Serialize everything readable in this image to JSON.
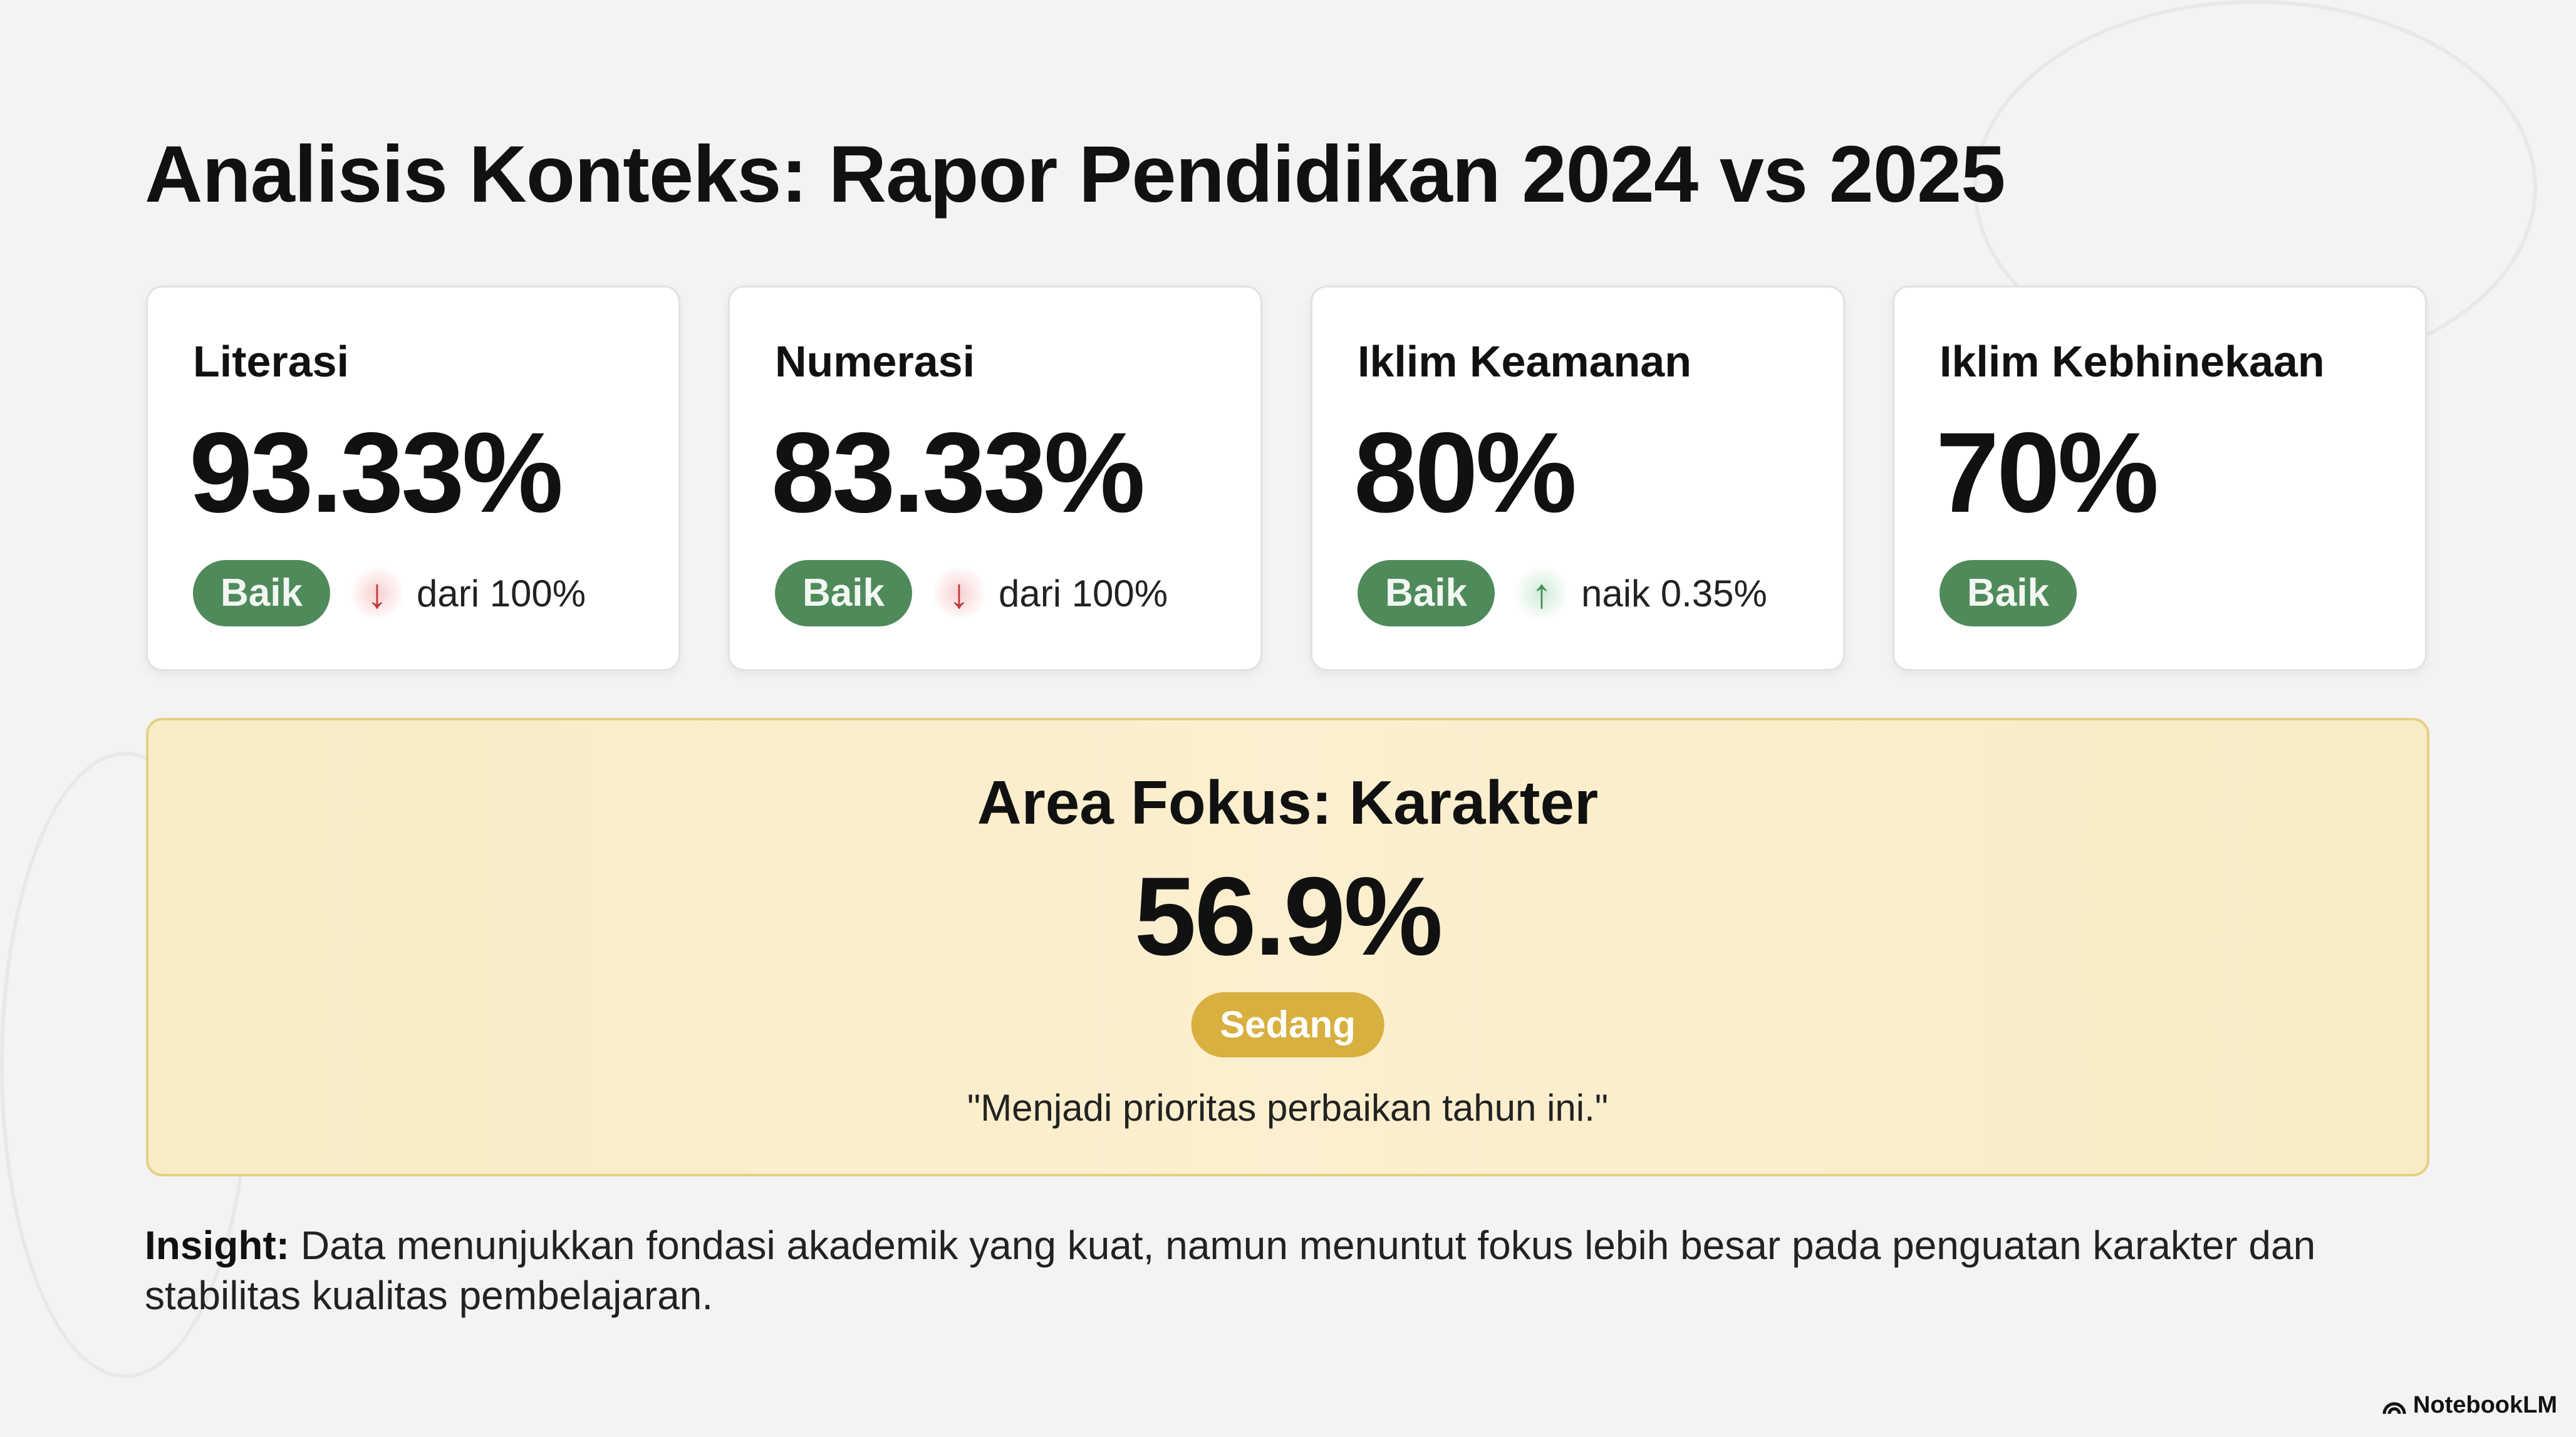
{
  "title": "Analisis Konteks: Rapor Pendidikan 2024 vs 2025",
  "cards": [
    {
      "label": "Literasi",
      "value": "93.33%",
      "badge": "Baik",
      "trend": "down",
      "trend_icon": "arrow-down-icon",
      "delta": "dari 100%"
    },
    {
      "label": "Numerasi",
      "value": "83.33%",
      "badge": "Baik",
      "trend": "down",
      "trend_icon": "arrow-down-icon",
      "delta": "dari 100%"
    },
    {
      "label": "Iklim Keamanan",
      "value": "80%",
      "badge": "Baik",
      "trend": "up",
      "trend_icon": "arrow-up-icon",
      "delta": "naik 0.35%"
    },
    {
      "label": "Iklim Kebhinekaan",
      "value": "70%",
      "badge": "Baik"
    }
  ],
  "focus": {
    "title": "Area Fokus: Karakter",
    "value": "56.9%",
    "badge": "Sedang",
    "quote": "\"Menjadi prioritas perbaikan tahun ini.\""
  },
  "insight": {
    "label": "Insight:",
    "text": " Data menunjukkan fondasi akademik yang kuat, namun menuntut fokus lebih besar pada penguatan karakter dan stabilitas kualitas pembelajaran."
  },
  "brand": "NotebookLM",
  "colors": {
    "good": "#4f8a5b",
    "medium": "#d8b03f",
    "down": "#c0393b",
    "up": "#3f8f55",
    "focus_bg": "#f8ecc6"
  }
}
